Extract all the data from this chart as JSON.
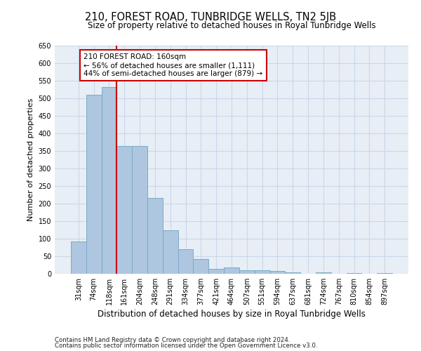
{
  "title": "210, FOREST ROAD, TUNBRIDGE WELLS, TN2 5JB",
  "subtitle": "Size of property relative to detached houses in Royal Tunbridge Wells",
  "xlabel": "Distribution of detached houses by size in Royal Tunbridge Wells",
  "ylabel": "Number of detached properties",
  "footnote1": "Contains HM Land Registry data © Crown copyright and database right 2024.",
  "footnote2": "Contains public sector information licensed under the Open Government Licence v3.0.",
  "categories": [
    "31sqm",
    "74sqm",
    "118sqm",
    "161sqm",
    "204sqm",
    "248sqm",
    "291sqm",
    "334sqm",
    "377sqm",
    "421sqm",
    "464sqm",
    "507sqm",
    "551sqm",
    "594sqm",
    "637sqm",
    "681sqm",
    "724sqm",
    "767sqm",
    "810sqm",
    "854sqm",
    "897sqm"
  ],
  "values": [
    92,
    510,
    533,
    365,
    365,
    217,
    125,
    70,
    42,
    15,
    18,
    10,
    10,
    8,
    5,
    0,
    5,
    0,
    3,
    0,
    3
  ],
  "bar_color": "#aec6df",
  "bar_edgecolor": "#7aaac8",
  "annotation_box_text": "210 FOREST ROAD: 160sqm\n← 56% of detached houses are smaller (1,111)\n44% of semi-detached houses are larger (879) →",
  "ylim": [
    0,
    650
  ],
  "yticks": [
    0,
    50,
    100,
    150,
    200,
    250,
    300,
    350,
    400,
    450,
    500,
    550,
    600,
    650
  ],
  "grid_color": "#c8d8ea",
  "bg_color": "#e8eef5",
  "title_fontsize": 10.5,
  "subtitle_fontsize": 8.5,
  "ylabel_fontsize": 8,
  "xlabel_fontsize": 8.5,
  "annotation_fontsize": 7.5,
  "tick_fontsize": 7,
  "footnote_fontsize": 6.2,
  "red_line_color": "#cc0000",
  "annotation_rect_color": "#cc0000",
  "red_line_x": 2.5
}
